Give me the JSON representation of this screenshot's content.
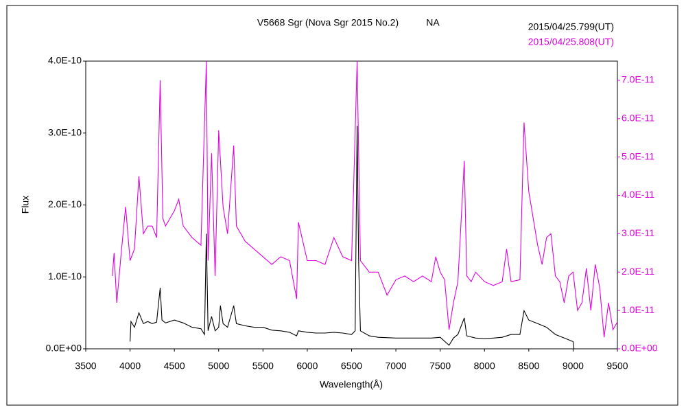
{
  "chart_data": {
    "type": "line",
    "title": "V5668 Sgr (Nova Sgr 2015 No.2)",
    "subtitle": "NA",
    "xlabel": "Wavelength(Å)",
    "ylabel": "Flux",
    "xlim": [
      3500,
      9500
    ],
    "xticks": [
      3500,
      4000,
      4500,
      5000,
      5500,
      6000,
      6500,
      7000,
      7500,
      8000,
      8500,
      9000,
      9500
    ],
    "ylim": [
      0,
      4e-10
    ],
    "yticks": [
      {
        "value": 0,
        "label": "0.0E+00"
      },
      {
        "value": 1e-10,
        "label": "1.0E-10"
      },
      {
        "value": 2e-10,
        "label": "2.0E-10"
      },
      {
        "value": 3e-10,
        "label": "3.0E-10"
      },
      {
        "value": 4e-10,
        "label": "4.0E-10"
      }
    ],
    "y2lim": [
      0,
      7.5e-11
    ],
    "y2ticks": [
      {
        "value": 0,
        "label": "0.0E+00"
      },
      {
        "value": 1e-11,
        "label": "1.0E-11"
      },
      {
        "value": 2e-11,
        "label": "2.0E-11"
      },
      {
        "value": 3e-11,
        "label": "3.0E-11"
      },
      {
        "value": 4e-11,
        "label": "4.0E-11"
      },
      {
        "value": 5e-11,
        "label": "5.0E-11"
      },
      {
        "value": 6e-11,
        "label": "6.0E-11"
      },
      {
        "value": 7e-11,
        "label": "7.0E-11"
      }
    ],
    "series": [
      {
        "name": "2015/04/25.799(UT)",
        "color": "#000000",
        "axis": "y",
        "x": [
          4000,
          4010,
          4050,
          4100,
          4150,
          4200,
          4250,
          4300,
          4340,
          4360,
          4400,
          4500,
          4600,
          4700,
          4800,
          4840,
          4861,
          4880,
          4920,
          4960,
          5000,
          5020,
          5050,
          5100,
          5170,
          5200,
          5300,
          5400,
          5500,
          5600,
          5700,
          5800,
          5880,
          5900,
          6000,
          6100,
          6200,
          6300,
          6400,
          6500,
          6540,
          6563,
          6580,
          6600,
          6700,
          6800,
          7000,
          7200,
          7400,
          7500,
          7600,
          7650,
          7700,
          7772,
          7800,
          7900,
          8000,
          8100,
          8200,
          8300,
          8400,
          8446,
          8500,
          8600,
          8700,
          8800,
          8900,
          9000,
          9010
        ],
        "values": [
          1e-11,
          3.8e-11,
          3e-11,
          5e-11,
          3.5e-11,
          3.8e-11,
          3.5e-11,
          3.7e-11,
          8.5e-11,
          4e-11,
          3.6e-11,
          4e-11,
          3.6e-11,
          3e-11,
          2.8e-11,
          2e-11,
          1.6e-10,
          2.5e-11,
          4.5e-11,
          2.5e-11,
          3e-11,
          6e-11,
          3.5e-11,
          3e-11,
          6e-11,
          3.5e-11,
          3.2e-11,
          3e-11,
          3e-11,
          2.6e-11,
          2.5e-11,
          2.3e-11,
          1.8e-11,
          2.5e-11,
          2.3e-11,
          2.2e-11,
          2.2e-11,
          2.3e-11,
          2.2e-11,
          2e-11,
          2.5e-11,
          3.1e-10,
          1.2e-10,
          2.5e-11,
          1.8e-11,
          1.6e-11,
          1.5e-11,
          1.5e-11,
          1.5e-11,
          1.6e-11,
          5e-12,
          1.5e-11,
          2e-11,
          4.3e-11,
          1.8e-11,
          1.5e-11,
          1.4e-11,
          1.5e-11,
          1.6e-11,
          2e-11,
          2e-11,
          5.3e-11,
          4e-11,
          3.5e-11,
          3e-11,
          2e-11,
          1.5e-11,
          1e-11,
          0
        ]
      },
      {
        "name": "2015/04/25.808(UT)",
        "color": "#e000e0",
        "axis": "y2",
        "x": [
          3800,
          3820,
          3850,
          3900,
          3950,
          4000,
          4050,
          4100,
          4150,
          4200,
          4250,
          4300,
          4340,
          4370,
          4400,
          4450,
          4500,
          4550,
          4600,
          4700,
          4800,
          4861,
          4880,
          4920,
          4960,
          5000,
          5050,
          5100,
          5170,
          5200,
          5300,
          5400,
          5500,
          5600,
          5700,
          5800,
          5880,
          5900,
          6000,
          6100,
          6200,
          6300,
          6400,
          6500,
          6563,
          6600,
          6700,
          6800,
          6900,
          7000,
          7100,
          7200,
          7300,
          7400,
          7450,
          7500,
          7550,
          7600,
          7650,
          7700,
          7772,
          7800,
          7850,
          7900,
          8000,
          8100,
          8200,
          8250,
          8300,
          8400,
          8446,
          8500,
          8550,
          8600,
          8650,
          8700,
          8750,
          8800,
          8850,
          8900,
          8950,
          9000,
          9050,
          9100,
          9150,
          9200,
          9250,
          9300,
          9350,
          9400,
          9450,
          9500
        ],
        "values": [
          1.9e-11,
          2.5e-11,
          1.2e-11,
          2.5e-11,
          3.7e-11,
          2.3e-11,
          2.6e-11,
          4.5e-11,
          3e-11,
          3.2e-11,
          3.2e-11,
          2.9e-11,
          7e-11,
          3.4e-11,
          3.2e-11,
          3.4e-11,
          3.6e-11,
          3.9e-11,
          3.2e-11,
          2.9e-11,
          2.7e-11,
          7.5e-11,
          2.3e-11,
          5.1e-11,
          1.9e-11,
          5.7e-11,
          3.7e-11,
          3e-11,
          5.3e-11,
          3.2e-11,
          2.8e-11,
          2.6e-11,
          2.4e-11,
          2.2e-11,
          2.4e-11,
          2.3e-11,
          1.3e-11,
          3.3e-11,
          2.3e-11,
          2.3e-11,
          2.2e-11,
          2.9e-11,
          2.4e-11,
          2.3e-11,
          7.5e-11,
          2.3e-11,
          2e-11,
          2e-11,
          1.4e-11,
          1.8e-11,
          1.9e-11,
          1.75e-11,
          1.9e-11,
          1.75e-11,
          2.4e-11,
          2e-11,
          1.8e-11,
          5e-12,
          1.2e-11,
          1.75e-11,
          4.9e-11,
          1.9e-11,
          1.75e-11,
          2e-11,
          1.75e-11,
          1.65e-11,
          1.75e-11,
          2.6e-11,
          1.75e-11,
          1.8e-11,
          5.9e-11,
          4.1e-11,
          3.4e-11,
          2.7e-11,
          2.2e-11,
          2.9e-11,
          3e-11,
          1.9e-11,
          1.75e-11,
          1.2e-11,
          1.9e-11,
          2e-11,
          1e-11,
          1.2e-11,
          2.1e-11,
          1e-11,
          2.2e-11,
          1.6e-11,
          3e-12,
          1.2e-11,
          5e-12,
          7e-12
        ]
      }
    ]
  }
}
